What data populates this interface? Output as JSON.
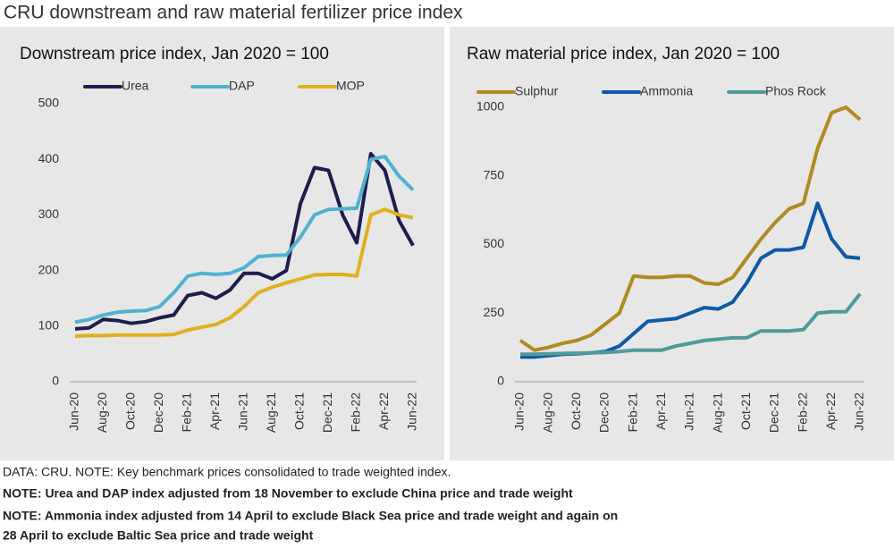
{
  "title": "CRU downstream and raw material fertilizer price index",
  "chart_data": [
    {
      "type": "line",
      "title": "Downstream price index, Jan 2020 = 100",
      "categories": [
        "Jun-20",
        null,
        "Aug-20",
        null,
        "Oct-20",
        null,
        "Dec-20",
        null,
        "Feb-21",
        null,
        "Apr-21",
        null,
        "Jun-21",
        null,
        "Aug-21",
        null,
        "Oct-21",
        null,
        "Dec-21",
        null,
        "Feb-22",
        null,
        "Apr-22",
        null,
        "Jun-22"
      ],
      "series": [
        {
          "name": "Urea",
          "color": "#1f1d4e",
          "values": [
            95,
            97,
            112,
            110,
            105,
            108,
            115,
            120,
            155,
            160,
            150,
            165,
            195,
            195,
            185,
            200,
            320,
            385,
            380,
            300,
            250,
            410,
            380,
            290,
            245
          ]
        },
        {
          "name": "DAP",
          "color": "#4fb3d0",
          "values": [
            107,
            112,
            120,
            125,
            127,
            128,
            135,
            160,
            190,
            195,
            193,
            195,
            205,
            225,
            227,
            228,
            260,
            300,
            310,
            311,
            312,
            400,
            405,
            370,
            345
          ]
        },
        {
          "name": "MOP",
          "color": "#e0b020",
          "values": [
            82,
            83,
            83,
            84,
            84,
            84,
            84,
            85,
            93,
            98,
            103,
            115,
            135,
            160,
            170,
            178,
            185,
            192,
            193,
            193,
            190,
            300,
            310,
            300,
            295
          ]
        }
      ],
      "ylim": [
        0,
        500
      ],
      "yticks": [
        0,
        100,
        200,
        300,
        400,
        500
      ]
    },
    {
      "type": "line",
      "title": "Raw material price index, Jan 2020 = 100",
      "categories": [
        "Jun-20",
        null,
        "Aug-20",
        null,
        "Oct-20",
        null,
        "Dec-20",
        null,
        "Feb-21",
        null,
        "Apr-21",
        null,
        "Jun-21",
        null,
        "Aug-21",
        null,
        "Oct-21",
        null,
        "Dec-21",
        null,
        "Feb-22",
        null,
        "Apr-22",
        null,
        "Jun-22"
      ],
      "series": [
        {
          "name": "Sulphur",
          "color": "#b08a22",
          "values": [
            150,
            115,
            125,
            140,
            150,
            170,
            210,
            250,
            385,
            380,
            380,
            385,
            385,
            360,
            355,
            380,
            450,
            520,
            580,
            630,
            650,
            850,
            980,
            1000,
            955
          ]
        },
        {
          "name": "Ammonia",
          "color": "#0c5aa6",
          "values": [
            90,
            90,
            95,
            100,
            102,
            105,
            110,
            130,
            175,
            220,
            225,
            230,
            250,
            270,
            265,
            290,
            360,
            450,
            480,
            480,
            490,
            650,
            520,
            455,
            450
          ]
        },
        {
          "name": "Phos Rock",
          "color": "#4f9a9a",
          "values": [
            100,
            100,
            102,
            103,
            104,
            105,
            107,
            110,
            115,
            115,
            115,
            130,
            140,
            150,
            155,
            160,
            160,
            185,
            185,
            185,
            190,
            250,
            255,
            255,
            320
          ]
        }
      ],
      "ylim": [
        0,
        1000
      ],
      "yticks": [
        0,
        250,
        500,
        750,
        1000
      ]
    }
  ],
  "footer": {
    "source": "DATA: CRU. NOTE: Key benchmark prices consolidated to trade weighted index.",
    "notes": [
      "NOTE: Urea and DAP index adjusted from 18 November to exclude China price and trade weight",
      "NOTE: Ammonia index adjusted from 14 April to exclude Black Sea price and trade weight and again on",
      "28 April to exclude Baltic Sea price and trade weight"
    ]
  }
}
